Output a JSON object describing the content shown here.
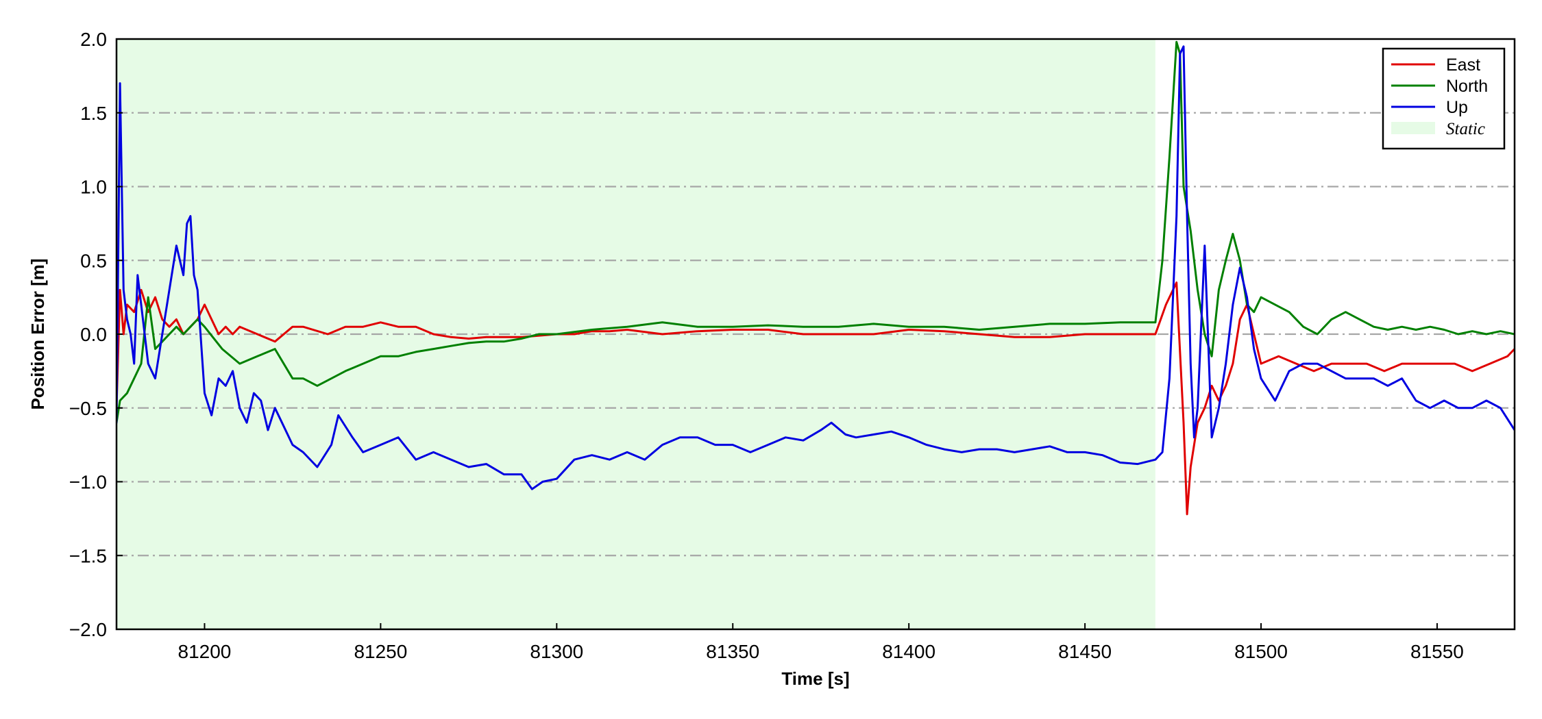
{
  "chart_data": {
    "type": "line",
    "xlabel": "Time [s]",
    "ylabel": "Position Error [m]",
    "xlim": [
      81175,
      81572
    ],
    "ylim": [
      -2.0,
      2.0
    ],
    "xticks": [
      81200,
      81250,
      81300,
      81350,
      81400,
      81450,
      81500,
      81550
    ],
    "xtick_labels": [
      "81200",
      "81250",
      "81300",
      "81350",
      "81400",
      "81450",
      "81500",
      "81550"
    ],
    "yticks": [
      -2.0,
      -1.5,
      -1.0,
      -0.5,
      0.0,
      0.5,
      1.0,
      1.5,
      2.0
    ],
    "ytick_labels": [
      "−2.0",
      "−1.5",
      "−1.0",
      "−0.5",
      "0.0",
      "0.5",
      "1.0",
      "1.5",
      "2.0"
    ],
    "grid": "horizontal dash-dot",
    "legend_placement": "top-right",
    "shaded_regions": [
      {
        "name": "Static",
        "x": [
          81175,
          81470
        ],
        "color": "#e6fbe6"
      }
    ],
    "series": [
      {
        "name": "East",
        "color": "#e00000",
        "x": [
          81175,
          81176,
          81177,
          81178,
          81180,
          81182,
          81184,
          81186,
          81188,
          81190,
          81192,
          81194,
          81196,
          81198,
          81200,
          81202,
          81204,
          81206,
          81208,
          81210,
          81215,
          81220,
          81225,
          81228,
          81235,
          81240,
          81245,
          81250,
          81255,
          81260,
          81265,
          81270,
          81275,
          81280,
          81285,
          81290,
          81300,
          81305,
          81310,
          81315,
          81320,
          81330,
          81340,
          81350,
          81360,
          81370,
          81380,
          81390,
          81400,
          81410,
          81420,
          81430,
          81440,
          81450,
          81460,
          81465,
          81470,
          81473,
          81476,
          81478,
          81479,
          81480,
          81482,
          81484,
          81486,
          81488,
          81490,
          81492,
          81494,
          81496,
          81498,
          81500,
          81505,
          81510,
          81515,
          81520,
          81525,
          81530,
          81535,
          81540,
          81545,
          81550,
          81555,
          81560,
          81565,
          81570,
          81572
        ],
        "y": [
          -0.5,
          0.3,
          0.0,
          0.2,
          0.15,
          0.3,
          0.15,
          0.25,
          0.1,
          0.05,
          0.1,
          0.0,
          0.05,
          0.1,
          0.2,
          0.1,
          0.0,
          0.05,
          0.0,
          0.05,
          0.0,
          -0.05,
          0.05,
          0.05,
          0.0,
          0.05,
          0.05,
          0.08,
          0.05,
          0.05,
          0.0,
          -0.02,
          -0.03,
          -0.02,
          -0.02,
          -0.02,
          0.0,
          0.0,
          0.02,
          0.02,
          0.03,
          0.0,
          0.02,
          0.03,
          0.03,
          0.0,
          0.0,
          0.0,
          0.03,
          0.02,
          0.0,
          -0.02,
          -0.02,
          0.0,
          0.0,
          0.0,
          0.0,
          0.2,
          0.35,
          -0.6,
          -1.22,
          -0.9,
          -0.6,
          -0.5,
          -0.35,
          -0.45,
          -0.35,
          -0.2,
          0.1,
          0.2,
          0.0,
          -0.2,
          -0.15,
          -0.2,
          -0.25,
          -0.2,
          -0.2,
          -0.2,
          -0.25,
          -0.2,
          -0.2,
          -0.2,
          -0.2,
          -0.25,
          -0.2,
          -0.15,
          -0.1
        ]
      },
      {
        "name": "North",
        "color": "#008000",
        "x": [
          81175,
          81176,
          81178,
          81180,
          81182,
          81184,
          81186,
          81188,
          81190,
          81192,
          81194,
          81196,
          81198,
          81200,
          81205,
          81210,
          81215,
          81220,
          81225,
          81228,
          81232,
          81236,
          81240,
          81245,
          81250,
          81255,
          81260,
          81265,
          81270,
          81275,
          81280,
          81285,
          81290,
          81295,
          81300,
          81310,
          81320,
          81330,
          81340,
          81350,
          81360,
          81370,
          81380,
          81390,
          81400,
          81410,
          81420,
          81430,
          81440,
          81450,
          81460,
          81470,
          81472,
          81474,
          81476,
          81477,
          81478,
          81480,
          81482,
          81484,
          81486,
          81488,
          81490,
          81492,
          81494,
          81496,
          81498,
          81500,
          81504,
          81508,
          81512,
          81516,
          81520,
          81524,
          81528,
          81532,
          81536,
          81540,
          81544,
          81548,
          81552,
          81556,
          81560,
          81564,
          81568,
          81572
        ],
        "y": [
          -0.6,
          -0.45,
          -0.4,
          -0.3,
          -0.2,
          0.25,
          -0.1,
          -0.05,
          0.0,
          0.05,
          0.0,
          0.05,
          0.1,
          0.05,
          -0.1,
          -0.2,
          -0.15,
          -0.1,
          -0.3,
          -0.3,
          -0.35,
          -0.3,
          -0.25,
          -0.2,
          -0.15,
          -0.15,
          -0.12,
          -0.1,
          -0.08,
          -0.06,
          -0.05,
          -0.05,
          -0.03,
          0.0,
          0.0,
          0.03,
          0.05,
          0.08,
          0.05,
          0.05,
          0.06,
          0.05,
          0.05,
          0.07,
          0.05,
          0.05,
          0.03,
          0.05,
          0.07,
          0.07,
          0.08,
          0.08,
          0.5,
          1.2,
          1.98,
          1.9,
          1.0,
          0.7,
          0.3,
          0.0,
          -0.15,
          0.3,
          0.5,
          0.68,
          0.5,
          0.2,
          0.15,
          0.25,
          0.2,
          0.15,
          0.05,
          0.0,
          0.1,
          0.15,
          0.1,
          0.05,
          0.03,
          0.05,
          0.03,
          0.05,
          0.03,
          0.0,
          0.02,
          0.0,
          0.02,
          0.0
        ]
      },
      {
        "name": "Up",
        "color": "#0000e0",
        "x": [
          81175,
          81176,
          81177,
          81178,
          81179,
          81180,
          81181,
          81182,
          81184,
          81186,
          81188,
          81190,
          81192,
          81194,
          81195,
          81196,
          81197,
          81198,
          81200,
          81202,
          81204,
          81206,
          81208,
          81210,
          81212,
          81214,
          81216,
          81218,
          81220,
          81222,
          81225,
          81228,
          81232,
          81236,
          81238,
          81242,
          81245,
          81250,
          81255,
          81260,
          81265,
          81270,
          81275,
          81280,
          81285,
          81290,
          81293,
          81296,
          81300,
          81305,
          81310,
          81315,
          81320,
          81325,
          81330,
          81335,
          81340,
          81345,
          81350,
          81355,
          81360,
          81365,
          81370,
          81375,
          81378,
          81382,
          81385,
          81390,
          81395,
          81400,
          81405,
          81410,
          81415,
          81420,
          81425,
          81430,
          81435,
          81440,
          81445,
          81450,
          81455,
          81460,
          81465,
          81470,
          81472,
          81474,
          81476,
          81477,
          81478,
          81479,
          81480,
          81481,
          81482,
          81484,
          81486,
          81488,
          81490,
          81492,
          81494,
          81496,
          81498,
          81500,
          81504,
          81508,
          81512,
          81516,
          81520,
          81524,
          81528,
          81532,
          81536,
          81540,
          81544,
          81548,
          81552,
          81556,
          81560,
          81564,
          81568,
          81572
        ],
        "y": [
          -0.6,
          1.7,
          0.3,
          0.1,
          0.0,
          -0.2,
          0.4,
          0.2,
          -0.2,
          -0.3,
          0.0,
          0.3,
          0.6,
          0.4,
          0.75,
          0.8,
          0.4,
          0.3,
          -0.4,
          -0.55,
          -0.3,
          -0.35,
          -0.25,
          -0.5,
          -0.6,
          -0.4,
          -0.45,
          -0.65,
          -0.5,
          -0.6,
          -0.75,
          -0.8,
          -0.9,
          -0.75,
          -0.55,
          -0.7,
          -0.8,
          -0.75,
          -0.7,
          -0.85,
          -0.8,
          -0.85,
          -0.9,
          -0.88,
          -0.95,
          -0.95,
          -1.05,
          -1.0,
          -0.98,
          -0.85,
          -0.82,
          -0.85,
          -0.8,
          -0.85,
          -0.75,
          -0.7,
          -0.7,
          -0.75,
          -0.75,
          -0.8,
          -0.75,
          -0.7,
          -0.72,
          -0.65,
          -0.6,
          -0.68,
          -0.7,
          -0.68,
          -0.66,
          -0.7,
          -0.75,
          -0.78,
          -0.8,
          -0.78,
          -0.78,
          -0.8,
          -0.78,
          -0.76,
          -0.8,
          -0.8,
          -0.82,
          -0.87,
          -0.88,
          -0.85,
          -0.8,
          -0.3,
          0.8,
          1.9,
          1.95,
          0.8,
          -0.2,
          -0.7,
          -0.5,
          0.6,
          -0.7,
          -0.5,
          -0.2,
          0.2,
          0.45,
          0.25,
          -0.1,
          -0.3,
          -0.45,
          -0.25,
          -0.2,
          -0.2,
          -0.25,
          -0.3,
          -0.3,
          -0.3,
          -0.35,
          -0.3,
          -0.45,
          -0.5,
          -0.45,
          -0.5,
          -0.5,
          -0.45,
          -0.5,
          -0.65
        ]
      }
    ]
  }
}
